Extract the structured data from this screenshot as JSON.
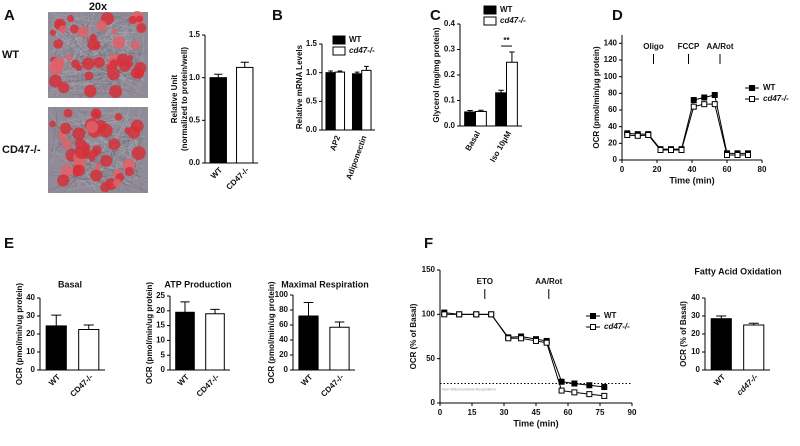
{
  "chart_data": [
    {
      "type": "bar",
      "panel": "A",
      "image_labels": {
        "magnification": "20x",
        "rows": [
          "WT",
          "CD47-/-"
        ]
      },
      "ylabel": [
        "Relative Unit",
        "(normalized to protein/well)"
      ],
      "categories": [
        "WT",
        "CD47-/-"
      ],
      "values": [
        1.0,
        1.12
      ],
      "errors": [
        0.04,
        0.06
      ],
      "colors": [
        "#000000",
        "#ffffff"
      ],
      "ylim": [
        0,
        1.5
      ],
      "yticks": [
        {
          "value": 0,
          "label": "0.0"
        },
        0.5,
        {
          "value": 1,
          "label": "1.0"
        },
        1.5
      ]
    },
    {
      "type": "grouped_bar",
      "panel": "B",
      "ylabel": "Relative mRNA Levels",
      "categories": [
        "AP2",
        "Adiponectin"
      ],
      "series": [
        {
          "name": "WT",
          "color": "#000000",
          "values": [
            1.0,
            0.98
          ],
          "errors": [
            0.03,
            0.03
          ]
        },
        {
          "name": "cd47-/-",
          "color": "#ffffff",
          "values": [
            1.01,
            1.04
          ],
          "errors": [
            0.02,
            0.07
          ]
        }
      ],
      "ylim": [
        0,
        1.5
      ],
      "yticks": [
        {
          "value": 0,
          "label": "0.0"
        },
        0.5,
        {
          "value": 1,
          "label": "1.0"
        },
        1.5
      ]
    },
    {
      "type": "grouped_bar",
      "panel": "C",
      "ylabel": "Glycerol (mg/mg protein)",
      "categories": [
        "Basal",
        "Iso 10μM"
      ],
      "series": [
        {
          "name": "WT",
          "color": "#000000",
          "values": [
            0.055,
            0.13
          ],
          "errors": [
            0.006,
            0.01
          ]
        },
        {
          "name": "cd47-/-",
          "color": "#ffffff",
          "values": [
            0.057,
            0.25
          ],
          "errors": [
            0.005,
            0.04
          ]
        }
      ],
      "annotation": "**",
      "ylim": [
        0,
        0.4
      ],
      "yticks": [
        {
          "value": 0,
          "label": "0.0"
        },
        0.1,
        0.2,
        0.3,
        0.4
      ]
    },
    {
      "type": "line",
      "panel": "D",
      "ylabel": "OCR (pmol/min/μg protein)",
      "xlabel": "Time (min)",
      "x": [
        3,
        9,
        15,
        22,
        28,
        34,
        41,
        47,
        53,
        60,
        66,
        72
      ],
      "series": [
        {
          "name": "WT",
          "color": "#000000",
          "values": [
            32,
            31,
            31,
            13,
            13,
            13,
            72,
            75,
            78,
            8,
            8,
            8
          ]
        },
        {
          "name": "cd47-/-",
          "color": "#ffffff",
          "values": [
            30,
            29,
            30,
            12,
            12,
            12,
            64,
            67,
            67,
            6,
            6,
            6
          ]
        }
      ],
      "annotations": [
        {
          "text": "Oligo",
          "x": 18
        },
        {
          "text": "FCCP",
          "x": 38
        },
        {
          "text": "AA/Rot",
          "x": 56
        }
      ],
      "xlim": [
        0,
        80
      ],
      "xticks": [
        0,
        20,
        40,
        60,
        80
      ],
      "ylim": [
        0,
        150
      ],
      "yticks": [
        0,
        20,
        40,
        60,
        80,
        100,
        120,
        140
      ]
    },
    {
      "type": "bar",
      "panel": "E",
      "title": "Basal",
      "ylabel": "OCR (pmol/min/ug protein)",
      "categories": [
        "WT",
        "CD47-/-"
      ],
      "values": [
        24.5,
        22.5
      ],
      "errors": [
        6,
        2.5
      ],
      "colors": [
        "#000000",
        "#ffffff"
      ],
      "ylim": [
        0,
        40
      ],
      "yticks": [
        0,
        10,
        20,
        30,
        40
      ]
    },
    {
      "type": "bar",
      "title": "ATP Production",
      "ylabel": "OCR (pmol/min/ug protein)",
      "categories": [
        "WT",
        "CD47-/-"
      ],
      "values": [
        19.5,
        19
      ],
      "errors": [
        3.5,
        1.5
      ],
      "colors": [
        "#000000",
        "#ffffff"
      ],
      "ylim": [
        0,
        25
      ],
      "yticks": [
        0,
        5,
        10,
        15,
        20,
        25
      ]
    },
    {
      "type": "bar",
      "title": "Maximal Respiration",
      "ylabel": "OCR (pmol/min/ug protein)",
      "categories": [
        "WT",
        "CD47-/-"
      ],
      "values": [
        72,
        57
      ],
      "errors": [
        18,
        7
      ],
      "colors": [
        "#000000",
        "#ffffff"
      ],
      "ylim": [
        0,
        100
      ],
      "yticks": [
        0,
        20,
        40,
        60,
        80,
        100
      ]
    },
    {
      "type": "line",
      "panel": "F",
      "ylabel": "OCR (% of Basal)",
      "xlabel": "Time (min)",
      "x": [
        2,
        9,
        17,
        24,
        32,
        38,
        45,
        50,
        57,
        63,
        70,
        77
      ],
      "series": [
        {
          "name": "WT",
          "color": "#000000",
          "values": [
            102,
            100,
            100,
            100,
            74,
            75,
            72,
            70,
            24,
            22,
            20,
            18
          ]
        },
        {
          "name": "cd47-/-",
          "color": "#ffffff",
          "values": [
            100,
            100,
            100,
            100,
            73,
            73,
            70,
            68,
            14,
            12,
            10,
            8
          ]
        }
      ],
      "annotations": [
        {
          "text": "ETO",
          "x": 21
        },
        {
          "text": "AA/Rot",
          "x": 51
        }
      ],
      "hline": {
        "value": 22,
        "label": "Non-Mitochondrial Respiration"
      },
      "xlim": [
        0,
        90
      ],
      "xticks": [
        0,
        15,
        30,
        45,
        60,
        75,
        90
      ],
      "ylim": [
        0,
        150
      ],
      "yticks": [
        0,
        50,
        100,
        150
      ]
    },
    {
      "type": "bar",
      "title": "Fatty Acid Oxidation",
      "ylabel": "OCR (% of Basal)",
      "categories": [
        "WT",
        "cd47-/-"
      ],
      "values": [
        28.5,
        25
      ],
      "errors": [
        1.5,
        1
      ],
      "colors": [
        "#000000",
        "#ffffff"
      ],
      "ylim": [
        0,
        40
      ],
      "yticks": [
        0,
        10,
        20,
        30,
        40
      ]
    }
  ]
}
